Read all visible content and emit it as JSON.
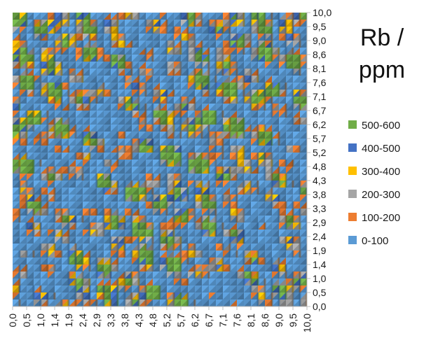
{
  "chart_data": {
    "type": "heatmap",
    "title_line1": "Rb /",
    "title_line2": "ppm",
    "x_ticks": [
      "0,0",
      "0,5",
      "1,0",
      "1,4",
      "1,9",
      "2,4",
      "2,9",
      "3,3",
      "3,8",
      "4,3",
      "4,8",
      "5,2",
      "5,7",
      "6,2",
      "6,7",
      "7,1",
      "7,6",
      "8,1",
      "8,6",
      "9,0",
      "9,5",
      "10,0"
    ],
    "y_ticks": [
      "0,0",
      "0,5",
      "1,0",
      "1,4",
      "1,9",
      "2,4",
      "2,9",
      "3,3",
      "3,8",
      "4,3",
      "4,8",
      "5,2",
      "5,7",
      "6,2",
      "6,7",
      "7,1",
      "7,6",
      "8,1",
      "8,6",
      "9,0",
      "9,5",
      "10,0"
    ],
    "xlim": [
      0,
      10
    ],
    "ylim": [
      0,
      10
    ],
    "legend_position": "right",
    "legend": [
      {
        "label": "500-600",
        "color": "#70ad47"
      },
      {
        "label": "400-500",
        "color": "#4472c4"
      },
      {
        "label": "300-400",
        "color": "#ffc000"
      },
      {
        "label": "200-300",
        "color": "#a5a5a5"
      },
      {
        "label": "100-200",
        "color": "#ed7d31"
      },
      {
        "label": "0-100",
        "color": "#5b9bd5"
      }
    ],
    "bands": [
      {
        "range": "0-100",
        "color": "#5b9bd5"
      },
      {
        "range": "100-200",
        "color": "#ed7d31"
      },
      {
        "range": "200-300",
        "color": "#a5a5a5"
      },
      {
        "range": "300-400",
        "color": "#ffc000"
      },
      {
        "range": "400-500",
        "color": "#4472c4"
      },
      {
        "range": "500-600",
        "color": "#70ad47"
      }
    ],
    "edge_colors": [
      "#2e5d8c",
      "#7a4a1f",
      "#5f5f5f",
      "#8c6a00",
      "#23416f",
      "#3f6e2a"
    ]
  }
}
